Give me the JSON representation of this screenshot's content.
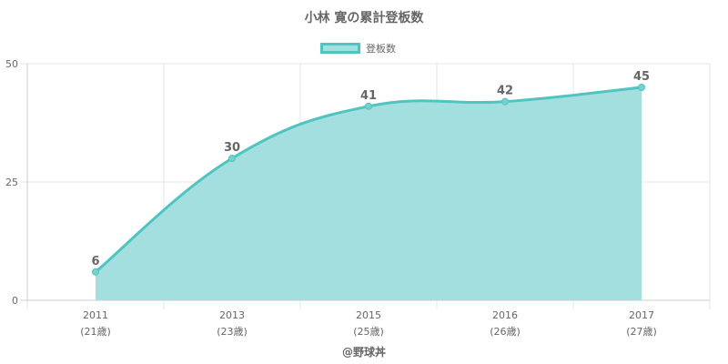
{
  "chart_data": {
    "type": "area",
    "title": "小林 寛の累計登板数",
    "legend": "登板数",
    "legend_position": "top",
    "categories": [
      "2011",
      "2013",
      "2015",
      "2016",
      "2017"
    ],
    "category_sublabels": [
      "(21歳)",
      "(23歳)",
      "(25歳)",
      "(26歳)",
      "(27歳)"
    ],
    "series": [
      {
        "name": "登板数",
        "values": [
          6,
          30,
          41,
          42,
          45
        ]
      }
    ],
    "ylim": [
      0,
      50
    ],
    "yticks": [
      "0",
      "25",
      "50"
    ],
    "grid": true,
    "colors": {
      "line": "#4fc4c0",
      "fill": "#a4dfdf",
      "point": "#75d2cf"
    }
  },
  "credit": "@野球丼"
}
